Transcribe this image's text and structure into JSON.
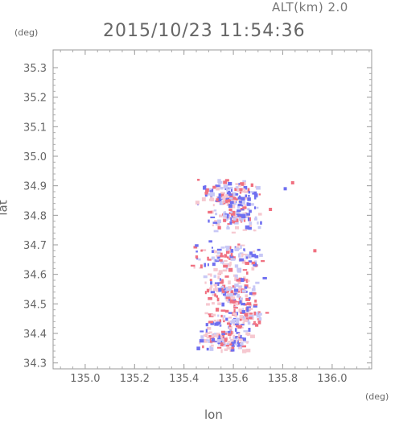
{
  "header": {
    "altitude": "ALT(km) 2.0",
    "timestamp": "2015/10/23 11:54:36"
  },
  "axes": {
    "lat_unit": "(deg)",
    "lon_unit": "(deg)",
    "lat_label": "lat",
    "lon_label": "lon",
    "lat_ticks": [
      "34.3",
      "34.4",
      "34.5",
      "34.6",
      "34.7",
      "34.8",
      "34.9",
      "35.0",
      "35.1",
      "35.2",
      "35.3"
    ],
    "lon_ticks": [
      "135.0",
      "135.2",
      "135.4",
      "135.6",
      "135.8",
      "136.0"
    ]
  },
  "chart_data": {
    "type": "scatter",
    "xlabel": "lon",
    "ylabel": "lat",
    "xlim": [
      134.87,
      136.16
    ],
    "ylim": [
      34.28,
      35.36
    ],
    "colors": {
      "positive": "#f07080",
      "negative": "#6f6ff0",
      "faint_pos": "#f6c8d0",
      "faint_neg": "#c8c8f6"
    },
    "clusters": [
      {
        "lon": 135.58,
        "lat": 34.88,
        "extent_lon": 0.14,
        "extent_lat": 0.05
      },
      {
        "lon": 135.6,
        "lat": 34.8,
        "extent_lon": 0.12,
        "extent_lat": 0.06
      },
      {
        "lon": 135.57,
        "lat": 34.65,
        "extent_lon": 0.16,
        "extent_lat": 0.07
      },
      {
        "lon": 135.58,
        "lat": 34.55,
        "extent_lon": 0.12,
        "extent_lat": 0.06
      },
      {
        "lon": 135.6,
        "lat": 34.45,
        "extent_lon": 0.14,
        "extent_lat": 0.06
      },
      {
        "lon": 135.56,
        "lat": 34.38,
        "extent_lon": 0.12,
        "extent_lat": 0.04
      }
    ],
    "isolated_points": [
      {
        "lon": 135.93,
        "lat": 34.68,
        "sign": "positive"
      },
      {
        "lon": 135.84,
        "lat": 34.91,
        "sign": "positive"
      },
      {
        "lon": 135.81,
        "lat": 34.89,
        "sign": "negative"
      },
      {
        "lon": 135.75,
        "lat": 34.82,
        "sign": "positive"
      }
    ]
  }
}
